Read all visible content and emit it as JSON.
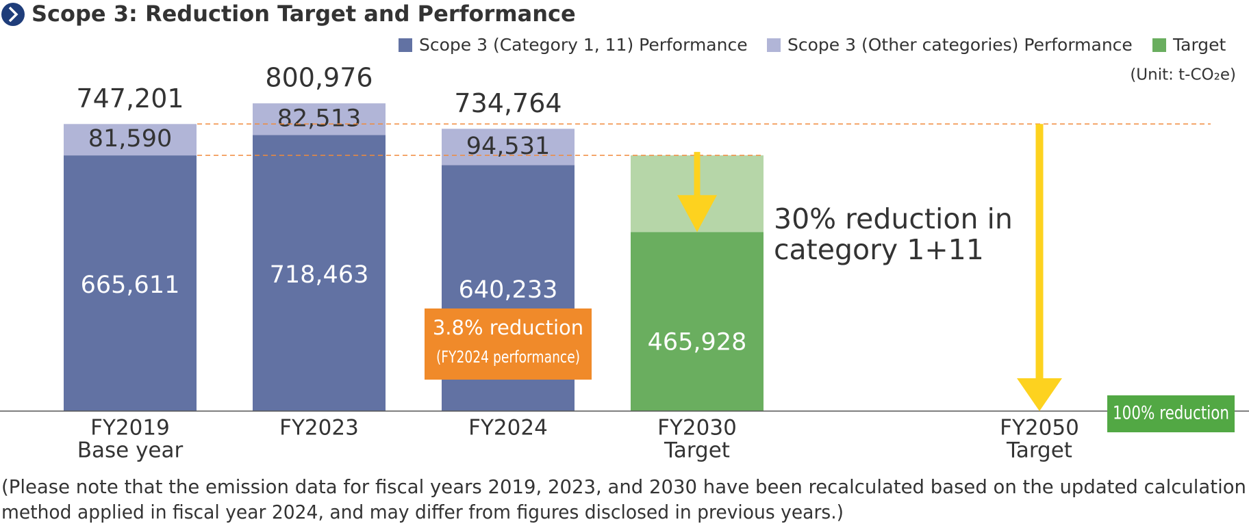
{
  "chart_data": {
    "type": "stacked_bar",
    "title": "Scope 3: Reduction Target and Performance",
    "unit": "(Unit: t-CO₂e)",
    "categories": [
      "FY2019",
      "FY2023",
      "FY2024",
      "FY2030",
      "FY2050"
    ],
    "category_sublabels": [
      "Base year",
      null,
      null,
      "Target",
      "Target"
    ],
    "series": [
      {
        "name": "Scope 3 (Category 1, 11) Performance",
        "color": "#6272a3",
        "label_color": "#ffffff",
        "values": [
          665611,
          718463,
          640233,
          null,
          null
        ],
        "value_labels": [
          "665,611",
          "718,463",
          "640,233",
          null,
          null
        ]
      },
      {
        "name": "Scope 3 (Other categories) Performance",
        "color": "#b1b5d7",
        "label_color": "#333333",
        "values": [
          81590,
          82513,
          94531,
          null,
          null
        ],
        "value_labels": [
          "81,590",
          "82,513",
          "94,531",
          null,
          null
        ]
      },
      {
        "name": "Target",
        "color": "#6aae5f",
        "label_color": "#ffffff",
        "values": [
          null,
          null,
          null,
          465928,
          0
        ],
        "value_labels": [
          null,
          null,
          null,
          "465,928",
          null
        ]
      }
    ],
    "totals": [
      747201,
      800976,
      734764,
      null,
      null
    ],
    "total_labels": [
      "747,201",
      "800,976",
      "734,764",
      null,
      null
    ],
    "ylim": [
      0,
      1000000
    ],
    "reduction_color": "#b6d6a8",
    "arrow_color": "#fdd21f",
    "dash_color": "#f08a3c",
    "annotations": {
      "fy2024_reduction": "3.8% reduction",
      "fy2024_note": "(FY2024 performance)",
      "fy2030_reduction": [
        "30% reduction in",
        "category 1+11"
      ],
      "fy2050_reduction": "100% reduction"
    },
    "note": [
      "(Please note that the emission data for fiscal years 2019, 2023, and 2030 have been recalculated based on the updated calculation",
      "method applied in fiscal year 2024, and may differ from figures disclosed in previous years.)"
    ]
  }
}
